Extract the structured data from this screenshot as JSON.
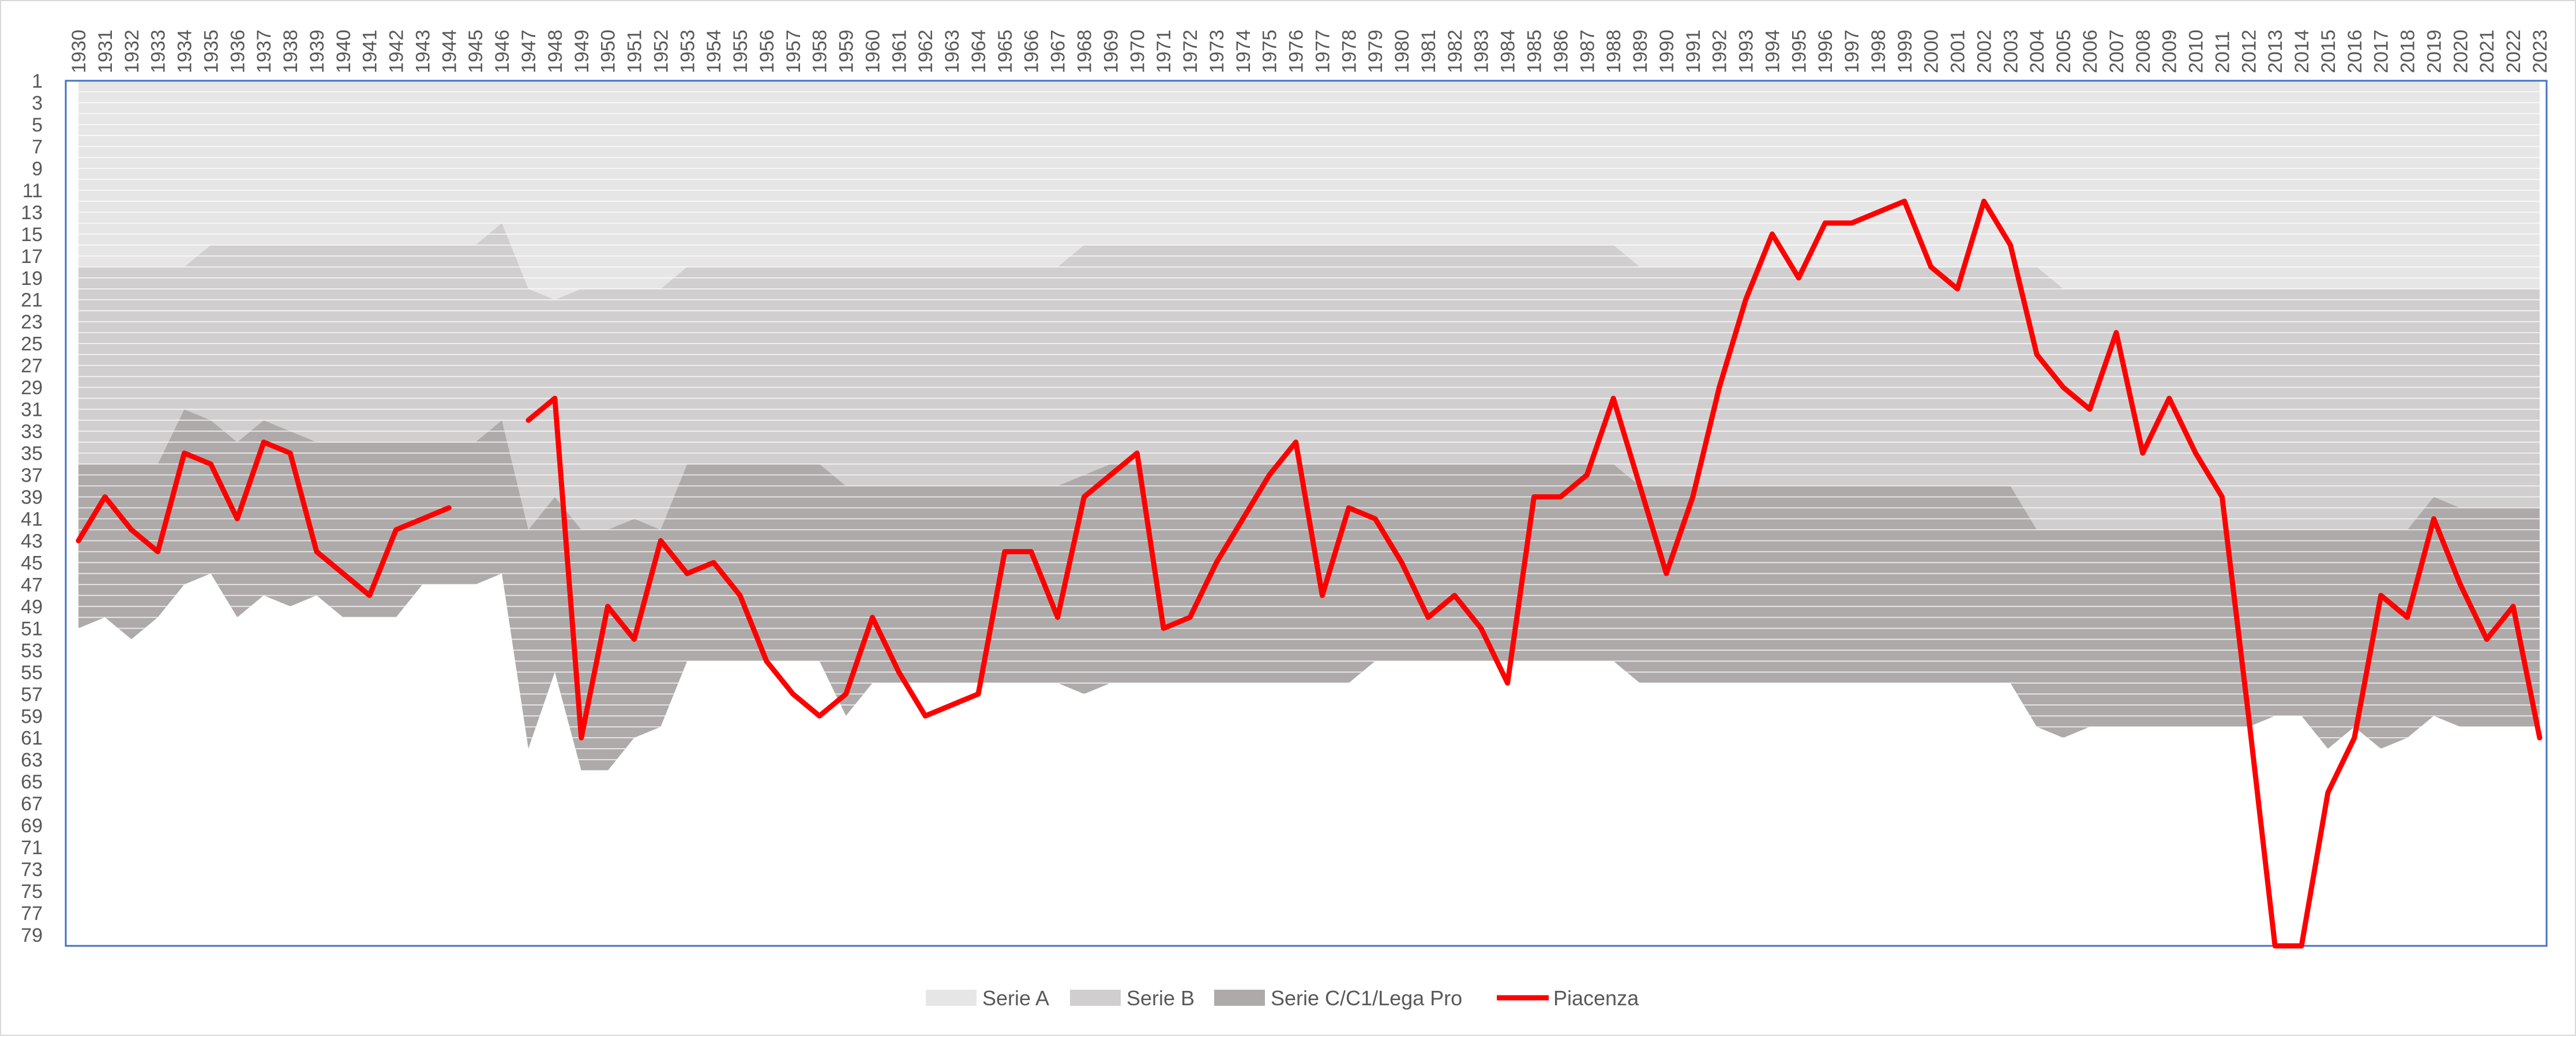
{
  "chart_data": {
    "type": "area",
    "title": "",
    "xlabel": "",
    "ylabel": "",
    "x_axis_position": "top",
    "x_tick_labels_rotated": true,
    "y_axis_reversed": true,
    "ylim": [
      1,
      80
    ],
    "y_tick_labels": [
      "1",
      "3",
      "5",
      "7",
      "9",
      "11",
      "13",
      "15",
      "17",
      "19",
      "21",
      "23",
      "25",
      "27",
      "29",
      "31",
      "33",
      "35",
      "37",
      "39",
      "41",
      "43",
      "45",
      "47",
      "49",
      "51",
      "53",
      "55",
      "57",
      "59",
      "61",
      "63",
      "65",
      "67",
      "69",
      "71",
      "73",
      "75",
      "77",
      "79"
    ],
    "grid": true,
    "legend_position": "bottom",
    "legend": [
      {
        "name": "Serie A",
        "color": "#e7e6e6",
        "kind": "area"
      },
      {
        "name": "Serie B",
        "color": "#d0cece",
        "kind": "area"
      },
      {
        "name": "Serie C/C1/Lega Pro",
        "color": "#aeaaaa",
        "kind": "area"
      },
      {
        "name": "Piacenza",
        "color": "#ff0000",
        "kind": "line"
      }
    ],
    "x": [
      1930,
      1931,
      1932,
      1933,
      1934,
      1935,
      1936,
      1937,
      1938,
      1939,
      1940,
      1941,
      1942,
      1943,
      1944,
      1945,
      1946,
      1947,
      1948,
      1949,
      1950,
      1951,
      1952,
      1953,
      1954,
      1955,
      1956,
      1957,
      1958,
      1959,
      1960,
      1961,
      1962,
      1963,
      1964,
      1965,
      1966,
      1967,
      1968,
      1969,
      1970,
      1971,
      1972,
      1973,
      1974,
      1975,
      1976,
      1977,
      1978,
      1979,
      1980,
      1981,
      1982,
      1983,
      1984,
      1985,
      1986,
      1987,
      1988,
      1989,
      1990,
      1991,
      1992,
      1993,
      1994,
      1995,
      1996,
      1997,
      1998,
      1999,
      2000,
      2001,
      2002,
      2003,
      2004,
      2005,
      2006,
      2007,
      2008,
      2009,
      2010,
      2011,
      2012,
      2013,
      2014,
      2015,
      2016,
      2017,
      2018,
      2019,
      2020,
      2021,
      2022,
      2023
    ],
    "x_tick_labels": [
      "1930",
      "1931",
      "1932",
      "1933",
      "1934",
      "1935",
      "1936",
      "1937",
      "1938",
      "1939",
      "1940",
      "1941",
      "1942",
      "1943",
      "1944",
      "1945",
      "1946",
      "1947",
      "1948",
      "1949",
      "1950",
      "1951",
      "1952",
      "1953",
      "1954",
      "1955",
      "1956",
      "1957",
      "1958",
      "1959",
      "1960",
      "1961",
      "1962",
      "1963",
      "1964",
      "1965",
      "1966",
      "1967",
      "1968",
      "1969",
      "1970",
      "1971",
      "1972",
      "1973",
      "1974",
      "1975",
      "1976",
      "1977",
      "1978",
      "1979",
      "1980",
      "1981",
      "1982",
      "1983",
      "1984",
      "1985",
      "1986",
      "1987",
      "1988",
      "1989",
      "1990",
      "1991",
      "1992",
      "1993",
      "1994",
      "1995",
      "1996",
      "1997",
      "1998",
      "1999",
      "2000",
      "2001",
      "2002",
      "2003",
      "2004",
      "2005",
      "2006",
      "2007",
      "2008",
      "2009",
      "2010",
      "2011",
      "2012",
      "2013",
      "2014",
      "2015",
      "2016",
      "2017",
      "2018",
      "2019",
      "2020",
      "2021",
      "2022",
      "2023"
    ],
    "series": [
      {
        "name": "Serie A",
        "kind": "band",
        "from": 1,
        "to": [
          18,
          18,
          18,
          18,
          18,
          16,
          16,
          16,
          16,
          16,
          16,
          16,
          16,
          16,
          16,
          16,
          14,
          20,
          21,
          20,
          20,
          20,
          20,
          18,
          18,
          18,
          18,
          18,
          18,
          18,
          18,
          18,
          18,
          18,
          18,
          18,
          18,
          18,
          16,
          16,
          16,
          16,
          16,
          16,
          16,
          16,
          16,
          16,
          16,
          16,
          16,
          16,
          16,
          16,
          16,
          16,
          16,
          16,
          16,
          18,
          18,
          18,
          18,
          18,
          18,
          18,
          18,
          18,
          18,
          18,
          18,
          18,
          18,
          18,
          18,
          20,
          20,
          20,
          20,
          20,
          20,
          20,
          20,
          20,
          20,
          20,
          20,
          20,
          20,
          20,
          20,
          20,
          20,
          20
        ]
      },
      {
        "name": "Serie B",
        "kind": "band",
        "to": [
          36,
          36,
          36,
          36,
          31,
          32,
          34,
          32,
          33,
          34,
          34,
          34,
          34,
          34,
          34,
          34,
          32,
          42,
          39,
          42,
          42,
          41,
          42,
          36,
          36,
          36,
          36,
          36,
          36,
          38,
          38,
          38,
          38,
          38,
          38,
          38,
          38,
          38,
          37,
          36,
          36,
          36,
          36,
          36,
          36,
          36,
          36,
          36,
          36,
          36,
          36,
          36,
          36,
          36,
          36,
          36,
          36,
          36,
          36,
          38,
          38,
          38,
          38,
          38,
          38,
          38,
          38,
          38,
          38,
          38,
          38,
          38,
          38,
          38,
          42,
          42,
          42,
          42,
          42,
          42,
          42,
          42,
          42,
          42,
          42,
          42,
          42,
          42,
          42,
          39,
          40,
          40,
          40,
          40
        ]
      },
      {
        "name": "Serie C/C1/Lega Pro",
        "kind": "band",
        "to": [
          51,
          50,
          52,
          50,
          47,
          46,
          50,
          48,
          49,
          48,
          50,
          50,
          50,
          47,
          47,
          47,
          46,
          62,
          55,
          64,
          64,
          61,
          60,
          54,
          54,
          54,
          54,
          54,
          54,
          59,
          56,
          56,
          56,
          56,
          56,
          56,
          56,
          56,
          57,
          56,
          56,
          56,
          56,
          56,
          56,
          56,
          56,
          56,
          56,
          54,
          54,
          54,
          54,
          54,
          54,
          54,
          54,
          54,
          54,
          56,
          56,
          56,
          56,
          56,
          56,
          56,
          56,
          56,
          56,
          56,
          56,
          56,
          56,
          56,
          60,
          61,
          60,
          60,
          60,
          60,
          60,
          60,
          60,
          59,
          59,
          62,
          60,
          62,
          61,
          59,
          60,
          60,
          60,
          60
        ]
      },
      {
        "name": "Piacenza",
        "kind": "line",
        "values": [
          43,
          39,
          42,
          44,
          35,
          36,
          41,
          34,
          35,
          44,
          46,
          48,
          42,
          41,
          40,
          null,
          null,
          32,
          30,
          61,
          49,
          52,
          43,
          46,
          45,
          48,
          54,
          57,
          59,
          57,
          50,
          55,
          59,
          58,
          57,
          44,
          44,
          50,
          39,
          37,
          35,
          51,
          50,
          45,
          41,
          37,
          34,
          48,
          40,
          41,
          45,
          50,
          48,
          51,
          56,
          39,
          39,
          37,
          30,
          38,
          46,
          39,
          29,
          21,
          15,
          19,
          14,
          14,
          13,
          12,
          18,
          20,
          12,
          16,
          26,
          29,
          31,
          24,
          35,
          30,
          35,
          39,
          59,
          80,
          80,
          66,
          61,
          48,
          50,
          41,
          47,
          52,
          49,
          61
        ]
      }
    ],
    "line_gaps": [
      [
        1943,
        1944
      ],
      [
        1944,
        1947
      ]
    ]
  }
}
